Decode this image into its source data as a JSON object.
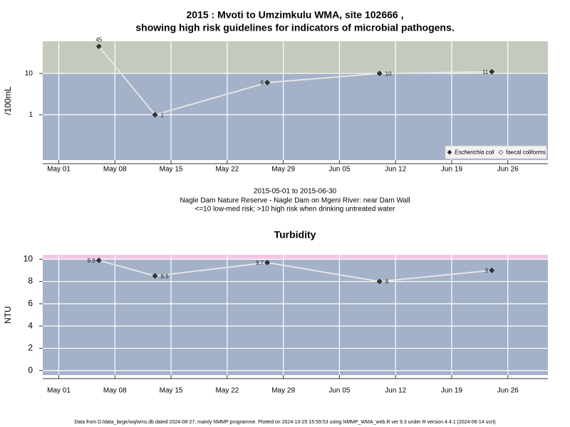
{
  "chart_data": [
    {
      "type": "line",
      "title": [
        "2015 : Mvoti to Umzimkulu WMA, site 102666 ,",
        "showing high risk guidelines for indicators of microbial pathogens."
      ],
      "subtitle": [
        "2015-05-01 to 2015-06-30",
        "Nagle Dam Nature Reserve - Nagle Dam on Mgeni River: near Dam Wall",
        "<=10 low-med risk; >10 high risk when drinking untreated water"
      ],
      "y_label": "/100mL",
      "yscale": "log",
      "ylim": [
        0.08,
        60
      ],
      "yticks": [
        1,
        10
      ],
      "x": [
        "2015-05-06",
        "2015-05-13",
        "2015-05-27",
        "2015-06-10",
        "2015-06-24"
      ],
      "xlim": [
        "2015-04-29",
        "2015-07-01"
      ],
      "xticks": [
        {
          "value": "2015-05-01",
          "label": "May 01"
        },
        {
          "value": "2015-05-08",
          "label": "May 08"
        },
        {
          "value": "2015-05-15",
          "label": "May 15"
        },
        {
          "value": "2015-05-22",
          "label": "May 22"
        },
        {
          "value": "2015-05-29",
          "label": "May 29"
        },
        {
          "value": "2015-06-05",
          "label": "Jun 05"
        },
        {
          "value": "2015-06-12",
          "label": "Jun 12"
        },
        {
          "value": "2015-06-19",
          "label": "Jun 19"
        },
        {
          "value": "2015-06-26",
          "label": "Jun 26"
        }
      ],
      "threshold": 10,
      "above_color": "#c3cbbf",
      "below_color": "#a3b2c9",
      "grid": true,
      "legend": "bottom-right",
      "series": [
        {
          "name": "Escherichia coli",
          "color": "#333333",
          "values": [
            45,
            1,
            6,
            10,
            11
          ]
        },
        {
          "name": "faecal coliforms",
          "color": "#ffffff",
          "values": [
            null,
            null,
            null,
            null,
            null
          ]
        }
      ]
    },
    {
      "type": "line",
      "title": [
        "Turbidity"
      ],
      "y_label": "NTU",
      "ylim": [
        -0.4,
        10.4
      ],
      "yticks": [
        0,
        2,
        4,
        6,
        8,
        10
      ],
      "x": [
        "2015-05-06",
        "2015-05-13",
        "2015-05-27",
        "2015-06-10",
        "2015-06-24"
      ],
      "xlim": [
        "2015-04-29",
        "2015-07-01"
      ],
      "xticks": [
        {
          "value": "2015-05-01",
          "label": "May 01"
        },
        {
          "value": "2015-05-08",
          "label": "May 08"
        },
        {
          "value": "2015-05-15",
          "label": "May 15"
        },
        {
          "value": "2015-05-22",
          "label": "May 22"
        },
        {
          "value": "2015-05-29",
          "label": "May 29"
        },
        {
          "value": "2015-06-05",
          "label": "Jun 05"
        },
        {
          "value": "2015-06-12",
          "label": "Jun 12"
        },
        {
          "value": "2015-06-19",
          "label": "Jun 19"
        },
        {
          "value": "2015-06-26",
          "label": "Jun 26"
        }
      ],
      "threshold": 10,
      "above_color": "#f2c6e2",
      "below_color": "#a3b2c9",
      "grid": true,
      "series": [
        {
          "name": "Turbidity",
          "color": "#333333",
          "values": [
            9.9,
            8.5,
            9.7,
            8,
            9
          ]
        }
      ]
    }
  ],
  "footer": "Data from D:/data_large/wq/wms.db dated 2024-08-27, mainly NMMP programme. Plotted on 2024-10-25 15:59:53 using NMMP_WMA_web.R ver 9.3 under R version 4.4.1 (2024-06-14 ucrt)"
}
